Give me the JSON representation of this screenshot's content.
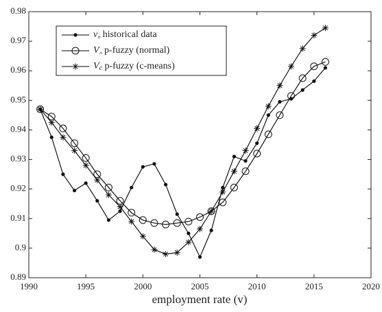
{
  "chart_data": {
    "type": "line",
    "x": [
      1991,
      1992,
      1993,
      1994,
      1995,
      1996,
      1997,
      1998,
      1999,
      2000,
      2001,
      2002,
      2003,
      2004,
      2005,
      2006,
      2007,
      2008,
      2009,
      2010,
      2011,
      2012,
      2013,
      2014,
      2015,
      2016
    ],
    "series": [
      {
        "name": "vₕ historical data",
        "color": "#000000",
        "marker": "dot",
        "values": [
          0.947,
          0.9375,
          0.925,
          0.9195,
          0.922,
          0.916,
          0.9095,
          0.9125,
          0.9205,
          0.9275,
          0.9285,
          0.9215,
          0.9115,
          0.905,
          0.897,
          0.906,
          0.9205,
          0.931,
          0.9295,
          0.9355,
          0.945,
          0.9495,
          0.9505,
          0.9535,
          0.9565,
          0.961
        ]
      },
      {
        "name": "Vₙ p-fuzzy (normal)",
        "color": "#000000",
        "marker": "circle",
        "values": [
          0.947,
          0.9445,
          0.9405,
          0.9355,
          0.9305,
          0.925,
          0.9205,
          0.916,
          0.912,
          0.9095,
          0.9085,
          0.908,
          0.9085,
          0.909,
          0.9105,
          0.9125,
          0.9155,
          0.9205,
          0.926,
          0.932,
          0.9385,
          0.945,
          0.9515,
          0.9575,
          0.9615,
          0.963
        ]
      },
      {
        "name": "Vc p-fuzzy (c-means)",
        "color": "#000000",
        "marker": "star",
        "values": [
          0.947,
          0.9425,
          0.9375,
          0.933,
          0.928,
          0.923,
          0.918,
          0.914,
          0.909,
          0.904,
          0.8995,
          0.898,
          0.8985,
          0.902,
          0.9065,
          0.9125,
          0.919,
          0.926,
          0.933,
          0.9405,
          0.948,
          0.955,
          0.9615,
          0.9675,
          0.972,
          0.9745
        ]
      }
    ],
    "xlabel": "employment rate (v)",
    "xlim": [
      1990,
      2020
    ],
    "xticks": [
      1990,
      1995,
      2000,
      2005,
      2010,
      2015,
      2020
    ],
    "ylim": [
      0.89,
      0.98
    ],
    "yticks": [
      0.89,
      0.9,
      0.91,
      0.92,
      0.93,
      0.94,
      0.95,
      0.96,
      0.97,
      0.98
    ],
    "legend": "upper left"
  }
}
